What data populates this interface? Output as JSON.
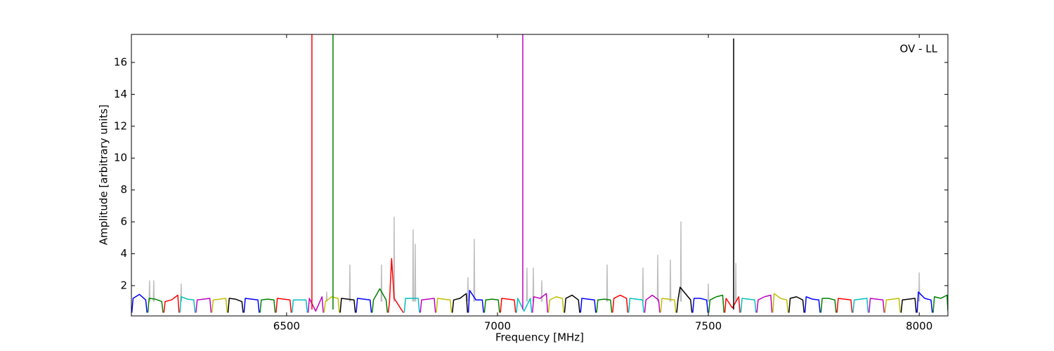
{
  "chart_data": {
    "type": "line",
    "annotation": "OV - LL",
    "x_label": "Frequency [MHz]",
    "y_label": "Amplitude [arbitrary units]",
    "xlim": [
      6132,
      8068
    ],
    "ylim": [
      0.1,
      17.76
    ],
    "xticks": [
      6500,
      7000,
      7500,
      8000
    ],
    "yticks": [
      2,
      4,
      6,
      8,
      10,
      12,
      14,
      16
    ],
    "series": [
      {
        "color": "#bebebe",
        "x": [
          6174,
          6175,
          6176,
          6177,
          6184,
          6185,
          6186,
          6187,
          6249,
          6250,
          6251,
          6252,
          6594,
          6595,
          6596,
          6597,
          6649,
          6650,
          6651,
          6652,
          6724,
          6725,
          6726,
          6727,
          6754,
          6755,
          6756,
          6757,
          6799,
          6800,
          6801,
          6802,
          6804,
          6805,
          6806,
          6807,
          6929,
          6930,
          6931,
          6932,
          6944,
          6945,
          6946,
          6947,
          7069,
          7070,
          7071,
          7072,
          7084,
          7085,
          7086,
          7087,
          7104,
          7105,
          7106,
          7107,
          7259,
          7260,
          7261,
          7262,
          7344,
          7345,
          7346,
          7347,
          7379,
          7380,
          7381,
          7382,
          7409,
          7410,
          7411,
          7412,
          7434,
          7435,
          7436,
          7437,
          7499,
          7500,
          7501,
          7502,
          7564,
          7565,
          7566,
          7567,
          7999,
          8000,
          8001,
          8002
        ],
        "values": [
          1.0,
          2.3,
          1.0,
          null,
          1.0,
          2.3,
          1.0,
          null,
          1.0,
          2.1,
          1.0,
          null,
          1.0,
          1.6,
          1.0,
          null,
          1.0,
          3.3,
          1.0,
          null,
          1.0,
          3.3,
          1.0,
          null,
          1.0,
          6.3,
          1.0,
          null,
          1.0,
          5.5,
          1.0,
          null,
          1.0,
          4.6,
          1.0,
          null,
          1.0,
          2.5,
          1.0,
          null,
          1.0,
          4.9,
          1.0,
          null,
          1.0,
          3.1,
          1.0,
          null,
          1.0,
          3.1,
          1.0,
          null,
          1.0,
          2.3,
          1.0,
          null,
          1.0,
          3.3,
          1.0,
          null,
          1.0,
          3.1,
          1.0,
          null,
          1.0,
          3.9,
          1.0,
          null,
          1.0,
          3.6,
          1.0,
          null,
          1.0,
          6.0,
          1.0,
          null,
          1.0,
          2.1,
          1.0,
          null,
          1.0,
          3.4,
          1.0,
          null,
          1.0,
          2.8,
          1.0,
          null
        ]
      },
      {
        "color": "#0000ff",
        "x": [
          6133,
          6136,
          6151,
          6166,
          6169
        ],
        "values": [
          0.3,
          1.2,
          1.45,
          1.1,
          0.3
        ]
      },
      {
        "color": "#008000",
        "x": [
          6171,
          6174,
          6189,
          6204,
          6207
        ],
        "values": [
          0.3,
          1.2,
          1.15,
          1.0,
          0.3
        ]
      },
      {
        "color": "#ff0000",
        "x": [
          6209,
          6212,
          6227,
          6242,
          6245
        ],
        "values": [
          0.3,
          1.0,
          1.1,
          1.4,
          0.3
        ]
      },
      {
        "color": "#00bfbf",
        "x": [
          6247,
          6250,
          6265,
          6280,
          6283
        ],
        "values": [
          0.3,
          1.3,
          1.15,
          1.1,
          0.3
        ]
      },
      {
        "color": "#bf00bf",
        "x": [
          6285,
          6288,
          6303,
          6318,
          6321
        ],
        "values": [
          0.3,
          1.1,
          1.15,
          1.2,
          0.3
        ]
      },
      {
        "color": "#bfbf00",
        "x": [
          6323,
          6326,
          6341,
          6356,
          6359
        ],
        "values": [
          0.3,
          1.1,
          1.15,
          1.2,
          0.3
        ]
      },
      {
        "color": "#000000",
        "x": [
          6361,
          6364,
          6379,
          6394,
          6397
        ],
        "values": [
          0.3,
          1.2,
          1.15,
          1.0,
          0.3
        ]
      },
      {
        "color": "#0000ff",
        "x": [
          6399,
          6402,
          6417,
          6432,
          6435
        ],
        "values": [
          0.3,
          1.2,
          1.15,
          1.1,
          0.3
        ]
      },
      {
        "color": "#008000",
        "x": [
          6437,
          6440,
          6455,
          6470,
          6473
        ],
        "values": [
          0.3,
          1.1,
          1.15,
          1.1,
          0.3
        ]
      },
      {
        "color": "#ff0000",
        "x": [
          6475,
          6478,
          6493,
          6508,
          6511
        ],
        "values": [
          0.3,
          1.2,
          1.15,
          1.1,
          0.3
        ]
      },
      {
        "color": "#00bfbf",
        "x": [
          6513,
          6516,
          6531,
          6546,
          6549
        ],
        "values": [
          0.3,
          1.1,
          1.1,
          1.1,
          0.3
        ]
      },
      {
        "color": "#bf00bf",
        "x": [
          6551,
          6554,
          6569,
          6584,
          6587
        ],
        "values": [
          0.3,
          1.2,
          0.4,
          1.3,
          0.3
        ]
      },
      {
        "color": "#bfbf00",
        "x": [
          6589,
          6592,
          6607,
          6622,
          6625
        ],
        "values": [
          0.3,
          1.0,
          1.3,
          1.2,
          0.3
        ]
      },
      {
        "color": "#000000",
        "x": [
          6627,
          6630,
          6645,
          6660,
          6663
        ],
        "values": [
          0.3,
          1.2,
          1.15,
          1.1,
          0.3
        ]
      },
      {
        "color": "#0000ff",
        "x": [
          6665,
          6668,
          6683,
          6698,
          6701
        ],
        "values": [
          0.3,
          1.2,
          1.15,
          1.1,
          0.3
        ]
      },
      {
        "color": "#008000",
        "x": [
          6703,
          6706,
          6721,
          6736,
          6739
        ],
        "values": [
          0.3,
          1.1,
          1.8,
          1.1,
          0.3
        ]
      },
      {
        "color": "#ff0000",
        "x": [
          6741,
          6744,
          6749,
          6755,
          6777
        ],
        "values": [
          0.3,
          1.0,
          3.7,
          1.2,
          0.3
        ]
      },
      {
        "color": "#00bfbf",
        "x": [
          6779,
          6782,
          6797,
          6812,
          6815
        ],
        "values": [
          0.3,
          1.2,
          1.2,
          1.2,
          0.3
        ]
      },
      {
        "color": "#bf00bf",
        "x": [
          6817,
          6820,
          6835,
          6850,
          6853
        ],
        "values": [
          0.3,
          1.1,
          1.15,
          1.2,
          0.3
        ]
      },
      {
        "color": "#bfbf00",
        "x": [
          6855,
          6858,
          6873,
          6888,
          6891
        ],
        "values": [
          0.3,
          1.2,
          1.15,
          1.1,
          0.3
        ]
      },
      {
        "color": "#000000",
        "x": [
          6893,
          6896,
          6911,
          6926,
          6929
        ],
        "values": [
          0.3,
          1.1,
          1.2,
          1.5,
          0.3
        ]
      },
      {
        "color": "#0000ff",
        "x": [
          6931,
          6934,
          6949,
          6964,
          6967
        ],
        "values": [
          0.3,
          1.7,
          1.1,
          1.1,
          0.3
        ]
      },
      {
        "color": "#008000",
        "x": [
          6969,
          6972,
          6987,
          7002,
          7005
        ],
        "values": [
          0.3,
          1.1,
          1.15,
          1.1,
          0.3
        ]
      },
      {
        "color": "#ff0000",
        "x": [
          7007,
          7010,
          7025,
          7040,
          7043
        ],
        "values": [
          0.3,
          1.2,
          1.15,
          1.1,
          0.3
        ]
      },
      {
        "color": "#00bfbf",
        "x": [
          7045,
          7048,
          7063,
          7078,
          7081
        ],
        "values": [
          0.3,
          1.2,
          0.4,
          1.2,
          0.3
        ]
      },
      {
        "color": "#bf00bf",
        "x": [
          7083,
          7086,
          7101,
          7116,
          7119
        ],
        "values": [
          0.3,
          1.3,
          1.2,
          1.5,
          0.3
        ]
      },
      {
        "color": "#bfbf00",
        "x": [
          7121,
          7124,
          7139,
          7154,
          7157
        ],
        "values": [
          0.3,
          1.1,
          1.3,
          1.2,
          0.3
        ]
      },
      {
        "color": "#000000",
        "x": [
          7159,
          7162,
          7177,
          7192,
          7195
        ],
        "values": [
          0.3,
          1.2,
          1.4,
          1.1,
          0.3
        ]
      },
      {
        "color": "#0000ff",
        "x": [
          7197,
          7200,
          7215,
          7230,
          7233
        ],
        "values": [
          0.3,
          1.2,
          1.15,
          1.1,
          0.3
        ]
      },
      {
        "color": "#008000",
        "x": [
          7235,
          7238,
          7253,
          7268,
          7271
        ],
        "values": [
          0.3,
          1.1,
          1.15,
          1.1,
          0.3
        ]
      },
      {
        "color": "#ff0000",
        "x": [
          7273,
          7276,
          7291,
          7306,
          7309
        ],
        "values": [
          0.3,
          1.2,
          1.4,
          1.2,
          0.3
        ]
      },
      {
        "color": "#00bfbf",
        "x": [
          7311,
          7314,
          7329,
          7344,
          7347
        ],
        "values": [
          0.3,
          1.2,
          1.15,
          1.1,
          0.3
        ]
      },
      {
        "color": "#bf00bf",
        "x": [
          7349,
          7352,
          7367,
          7382,
          7385
        ],
        "values": [
          0.3,
          1.1,
          1.4,
          1.1,
          0.3
        ]
      },
      {
        "color": "#bfbf00",
        "x": [
          7387,
          7390,
          7405,
          7420,
          7423
        ],
        "values": [
          0.3,
          1.2,
          1.15,
          1.1,
          0.3
        ]
      },
      {
        "color": "#000000",
        "x": [
          7425,
          7428,
          7433,
          7458,
          7461
        ],
        "values": [
          0.3,
          1.1,
          1.9,
          1.1,
          0.3
        ]
      },
      {
        "color": "#0000ff",
        "x": [
          7463,
          7466,
          7481,
          7496,
          7499
        ],
        "values": [
          0.3,
          1.2,
          1.2,
          1.1,
          0.3
        ]
      },
      {
        "color": "#008000",
        "x": [
          7501,
          7504,
          7519,
          7534,
          7537
        ],
        "values": [
          0.3,
          1.1,
          1.3,
          1.4,
          0.3
        ]
      },
      {
        "color": "#ff0000",
        "x": [
          7539,
          7542,
          7557,
          7572,
          7575
        ],
        "values": [
          0.3,
          1.2,
          0.6,
          1.3,
          0.3
        ]
      },
      {
        "color": "#00bfbf",
        "x": [
          7577,
          7580,
          7595,
          7610,
          7613
        ],
        "values": [
          0.3,
          1.2,
          1.15,
          1.1,
          0.3
        ]
      },
      {
        "color": "#bf00bf",
        "x": [
          7615,
          7618,
          7633,
          7648,
          7651
        ],
        "values": [
          0.3,
          1.1,
          1.3,
          1.4,
          0.3
        ]
      },
      {
        "color": "#bfbf00",
        "x": [
          7653,
          7656,
          7671,
          7686,
          7689
        ],
        "values": [
          0.3,
          1.5,
          1.2,
          1.1,
          0.3
        ]
      },
      {
        "color": "#000000",
        "x": [
          7691,
          7694,
          7709,
          7724,
          7727
        ],
        "values": [
          0.3,
          1.2,
          1.3,
          1.1,
          0.3
        ]
      },
      {
        "color": "#0000ff",
        "x": [
          7729,
          7732,
          7747,
          7762,
          7765
        ],
        "values": [
          0.3,
          1.3,
          1.15,
          1.1,
          0.3
        ]
      },
      {
        "color": "#008000",
        "x": [
          7767,
          7770,
          7785,
          7800,
          7803
        ],
        "values": [
          0.3,
          1.2,
          1.2,
          1.1,
          0.3
        ]
      },
      {
        "color": "#ff0000",
        "x": [
          7805,
          7808,
          7823,
          7838,
          7841
        ],
        "values": [
          0.3,
          1.2,
          1.15,
          1.1,
          0.3
        ]
      },
      {
        "color": "#00bfbf",
        "x": [
          7843,
          7846,
          7861,
          7876,
          7879
        ],
        "values": [
          0.3,
          1.1,
          1.15,
          1.2,
          0.3
        ]
      },
      {
        "color": "#bf00bf",
        "x": [
          7881,
          7884,
          7899,
          7914,
          7917
        ],
        "values": [
          0.3,
          1.2,
          1.15,
          1.1,
          0.3
        ]
      },
      {
        "color": "#bfbf00",
        "x": [
          7919,
          7922,
          7937,
          7952,
          7955
        ],
        "values": [
          0.3,
          1.1,
          1.15,
          1.2,
          0.3
        ]
      },
      {
        "color": "#000000",
        "x": [
          7957,
          7960,
          7975,
          7990,
          7993
        ],
        "values": [
          0.3,
          1.1,
          1.15,
          1.2,
          0.3
        ]
      },
      {
        "color": "#0000ff",
        "x": [
          7995,
          7998,
          8013,
          8028,
          8031
        ],
        "values": [
          0.3,
          1.6,
          1.2,
          1.1,
          0.3
        ]
      },
      {
        "color": "#008000",
        "x": [
          8033,
          8036,
          8051,
          8066,
          8068
        ],
        "values": [
          0.3,
          1.3,
          1.2,
          1.4,
          0.4
        ]
      },
      {
        "color": "#ff0000",
        "x": [
          6560,
          6560
        ],
        "values": [
          0.5,
          17.76
        ]
      },
      {
        "color": "#008000",
        "x": [
          6610,
          6610
        ],
        "values": [
          0.5,
          17.76
        ]
      },
      {
        "color": "#bf00bf",
        "x": [
          7060,
          7060
        ],
        "values": [
          0.5,
          17.76
        ]
      },
      {
        "color": "#000000",
        "x": [
          7560,
          7560
        ],
        "values": [
          0.5,
          17.5
        ]
      }
    ]
  }
}
